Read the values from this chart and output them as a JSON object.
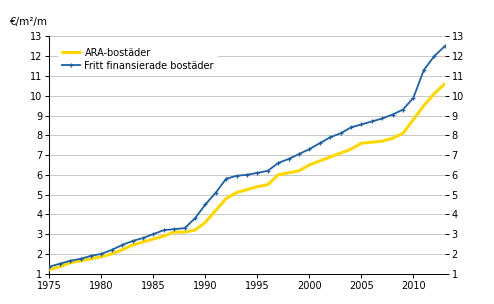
{
  "ylabel_left": "€/m²/m",
  "ylim": [
    1,
    13
  ],
  "yticks": [
    1,
    2,
    3,
    4,
    5,
    6,
    7,
    8,
    9,
    10,
    11,
    12,
    13
  ],
  "xlim": [
    1975,
    2013
  ],
  "xticks": [
    1975,
    1980,
    1985,
    1990,
    1995,
    2000,
    2005,
    2010
  ],
  "legend_labels": [
    "ARA-bostäder",
    "Fritt finansierade bostäder"
  ],
  "ara_color": "#FFD700",
  "fritt_color": "#2060A0",
  "background_color": "#ffffff",
  "grid_color": "#c8c8c8",
  "ara_years": [
    1975,
    1976,
    1977,
    1978,
    1979,
    1980,
    1981,
    1982,
    1983,
    1984,
    1985,
    1986,
    1987,
    1988,
    1989,
    1990,
    1991,
    1992,
    1993,
    1994,
    1995,
    1996,
    1997,
    1998,
    1999,
    2000,
    2001,
    2002,
    2003,
    2004,
    2005,
    2006,
    2007,
    2008,
    2009,
    2010,
    2011,
    2012,
    2013
  ],
  "ara_values": [
    1.2,
    1.35,
    1.55,
    1.65,
    1.75,
    1.85,
    2.0,
    2.2,
    2.45,
    2.6,
    2.75,
    2.9,
    3.1,
    3.1,
    3.2,
    3.6,
    4.2,
    4.8,
    5.1,
    5.25,
    5.4,
    5.5,
    6.0,
    6.1,
    6.2,
    6.5,
    6.7,
    6.9,
    7.1,
    7.3,
    7.6,
    7.65,
    7.7,
    7.85,
    8.1,
    8.8,
    9.5,
    10.1,
    10.6
  ],
  "fritt_years": [
    1975,
    1976,
    1977,
    1978,
    1979,
    1980,
    1981,
    1982,
    1983,
    1984,
    1985,
    1986,
    1987,
    1988,
    1989,
    1990,
    1991,
    1992,
    1993,
    1994,
    1995,
    1996,
    1997,
    1998,
    1999,
    2000,
    2001,
    2002,
    2003,
    2004,
    2005,
    2006,
    2007,
    2008,
    2009,
    2010,
    2011,
    2012,
    2013
  ],
  "fritt_values": [
    1.35,
    1.5,
    1.65,
    1.75,
    1.9,
    2.0,
    2.2,
    2.45,
    2.65,
    2.8,
    3.0,
    3.2,
    3.25,
    3.3,
    3.8,
    4.5,
    5.1,
    5.8,
    5.95,
    6.0,
    6.1,
    6.2,
    6.6,
    6.8,
    7.05,
    7.3,
    7.6,
    7.9,
    8.1,
    8.4,
    8.55,
    8.7,
    8.85,
    9.05,
    9.3,
    9.9,
    11.3,
    12.0,
    12.5
  ]
}
